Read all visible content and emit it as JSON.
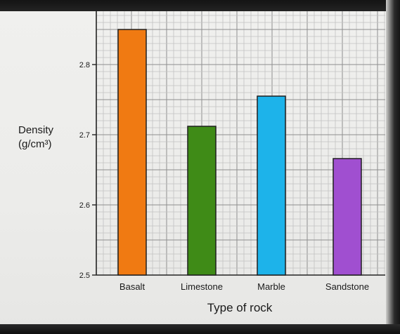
{
  "chart_data": {
    "type": "bar",
    "categories": [
      "Basalt",
      "Limestone",
      "Marble",
      "Sandstone"
    ],
    "values": [
      2.85,
      2.712,
      2.755,
      2.666
    ],
    "colors": [
      "#f07a12",
      "#3f8b17",
      "#1db3ea",
      "#a04fd0"
    ],
    "xlabel": "Type of rock",
    "ylabel_line1": "Density",
    "ylabel_line2": "(g/cm³)",
    "ylim": [
      2.5,
      2.88
    ],
    "yticks": [
      2.5,
      2.6,
      2.7,
      2.8
    ],
    "ytick_labels": [
      "2.5",
      "2.6",
      "2.7",
      "2.8"
    ],
    "grid": true
  }
}
